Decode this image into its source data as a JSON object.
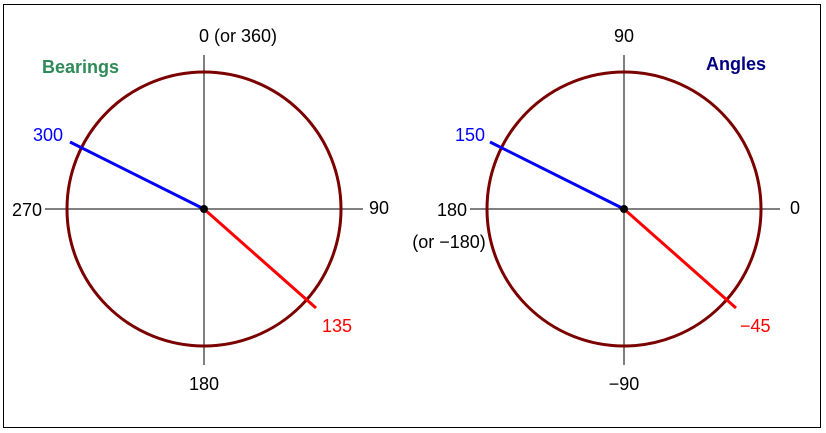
{
  "colors": {
    "circle": "#7b0000",
    "axis": "#000000",
    "blue_line": "#0000ff",
    "red_line": "#ff0000",
    "bearings_title": "#2e8b57",
    "angles_title": "#000080",
    "label": "#000000"
  },
  "bearings": {
    "title": "Bearings",
    "label_top": "0 (or 360)",
    "label_right": "90",
    "label_bottom": "180",
    "label_left": "270",
    "blue_value": "300",
    "red_value": "135"
  },
  "angles": {
    "title": "Angles",
    "label_top": "90",
    "label_right": "0",
    "label_bottom": "−90",
    "label_left_line1": "180",
    "label_left_line2": "(or −180)",
    "blue_value": "150",
    "red_value": "−45"
  }
}
